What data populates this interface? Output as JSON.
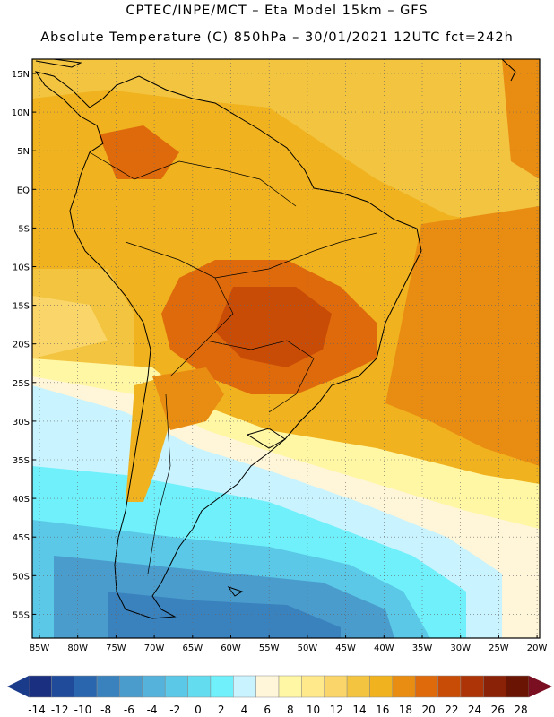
{
  "header": {
    "line1": "CPTEC/INPE/MCT –  Eta Model 15km – GFS",
    "line2": "Absolute Temperature (C) 850hPa – 30/01/2021 12UTC fct=242h"
  },
  "axes": {
    "lat_labels": [
      "15N",
      "10N",
      "5N",
      "EQ",
      "5S",
      "10S",
      "15S",
      "20S",
      "25S",
      "30S",
      "35S",
      "40S",
      "45S",
      "50S",
      "55S"
    ],
    "lon_labels": [
      "85W",
      "80W",
      "75W",
      "70W",
      "65W",
      "60W",
      "55W",
      "50W",
      "45W",
      "40W",
      "35W",
      "30W",
      "25W",
      "20W"
    ]
  },
  "colorbar": {
    "labels": [
      "-14",
      "-12",
      "-10",
      "-8",
      "-6",
      "-4",
      "-2",
      "0",
      "2",
      "4",
      "6",
      "8",
      "10",
      "12",
      "14",
      "16",
      "18",
      "20",
      "22",
      "24",
      "26",
      "28"
    ],
    "colors": [
      "#1a2f80",
      "#1f4b9a",
      "#2a66ad",
      "#3a82be",
      "#4a9ccc",
      "#55b2da",
      "#5ac8e6",
      "#64dcf0",
      "#6ff0fa",
      "#c8f3ff",
      "#fff5d8",
      "#fff7a4",
      "#ffe98a",
      "#fad66a",
      "#f2c440",
      "#f0b21e",
      "#e98d12",
      "#de6a0c",
      "#c94c06",
      "#ad3406",
      "#8a2208",
      "#6a1404"
    ],
    "low_end_color": "#1a3a8a",
    "high_end_color": "#7a0f22"
  }
}
